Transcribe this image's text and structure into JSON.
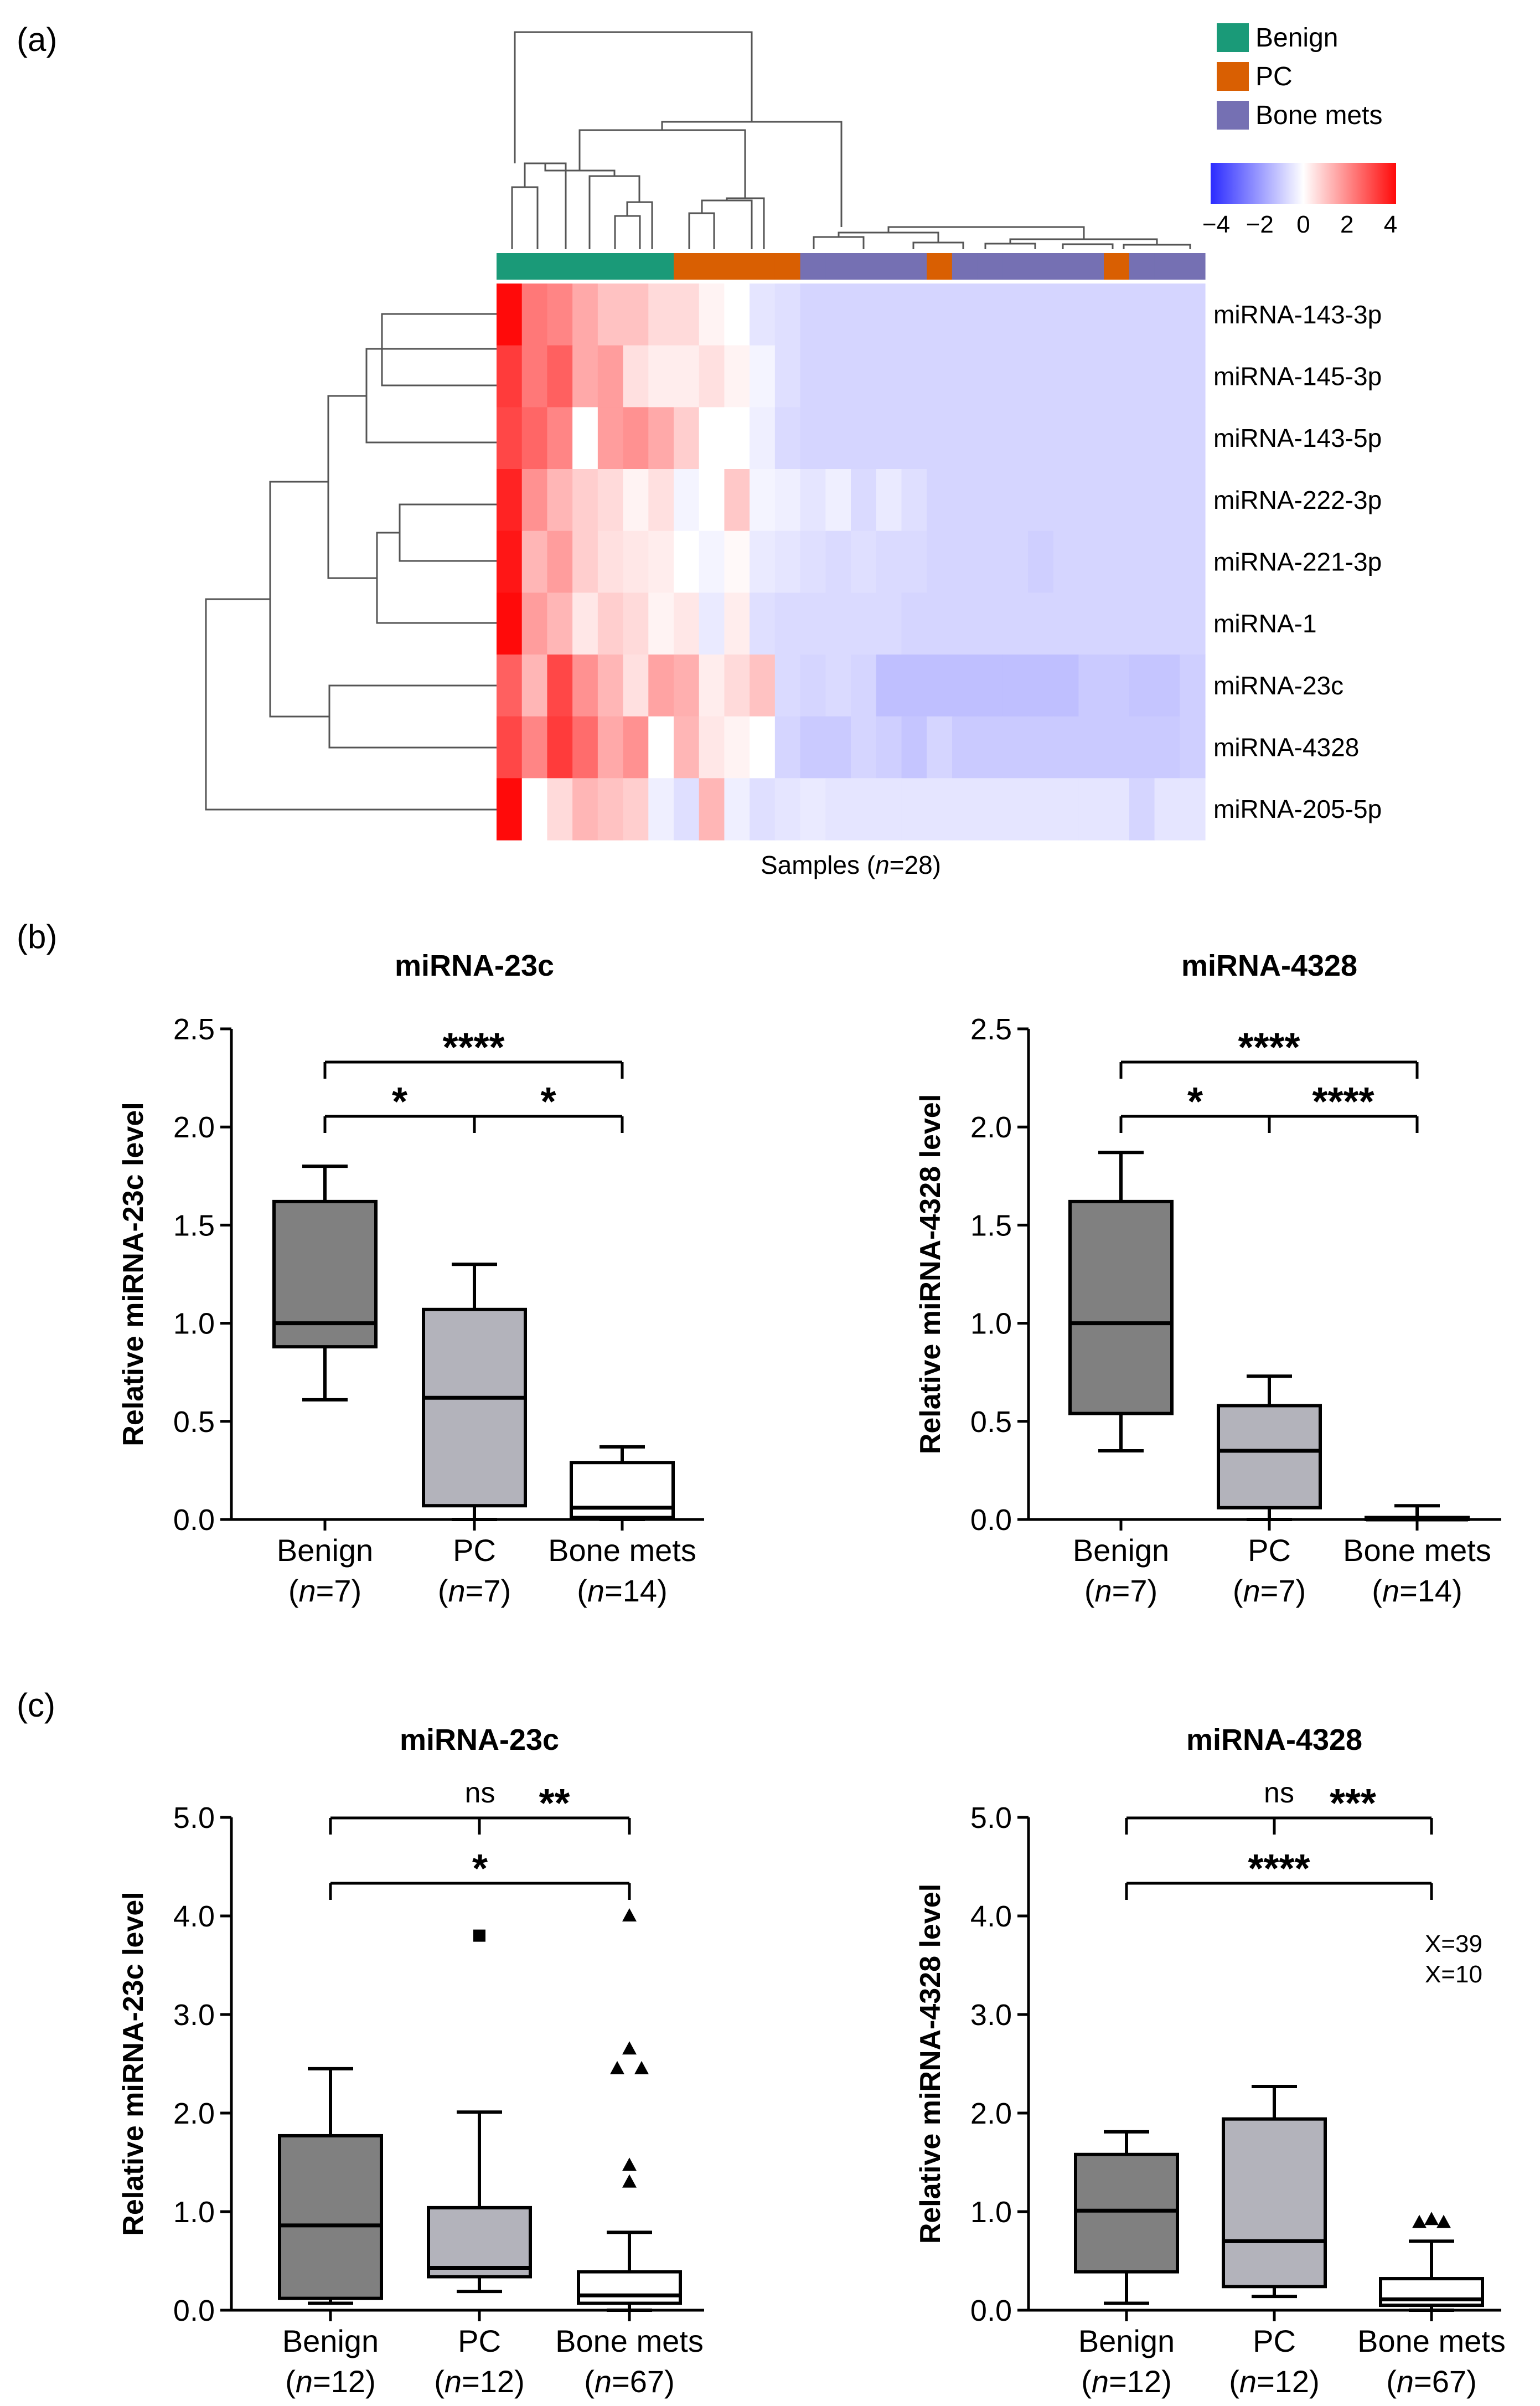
{
  "panels": {
    "a": {
      "label": "(a)",
      "sample_axis_label": "Samples (n=28)",
      "sample_axis_label_parts": {
        "prefix": "Samples (",
        "italic": "n",
        "suffix": "=28)"
      },
      "legend": [
        {
          "label": "Benign",
          "color": "#1a9a78"
        },
        {
          "label": "PC",
          "color": "#d95f02"
        },
        {
          "label": "Bone mets",
          "color": "#7570b3"
        }
      ],
      "colorbar": {
        "ticks": [
          "−4",
          "−2",
          "0",
          "2",
          "4"
        ],
        "min": -4,
        "max": 4,
        "low_color": "#2b2bff",
        "mid_color": "#ffffff",
        "high_color": "#ff0a0a"
      }
    },
    "b": {
      "label": "(b)"
    },
    "c": {
      "label": "(c)"
    }
  },
  "chart_data": [
    {
      "type": "heatmap",
      "panel": "a",
      "title": "",
      "xlabel": "Samples (n=28)",
      "row_labels": [
        "miRNA-143-3p",
        "miRNA-145-3p",
        "miRNA-143-5p",
        "miRNA-222-3p",
        "miRNA-221-3p",
        "miRNA-1",
        "miRNA-23c",
        "miRNA-4328",
        "miRNA-205-5p"
      ],
      "column_groups": [
        "Benign",
        "Benign",
        "Benign",
        "Benign",
        "Benign",
        "Benign",
        "Benign",
        "PC",
        "PC",
        "PC",
        "PC",
        "PC",
        "Bone mets",
        "Bone mets",
        "Bone mets",
        "Bone mets",
        "Bone mets",
        "PC",
        "Bone mets",
        "Bone mets",
        "Bone mets",
        "Bone mets",
        "Bone mets",
        "Bone mets",
        "PC",
        "Bone mets",
        "Bone mets",
        "Bone mets"
      ],
      "values": [
        [
          4.0,
          2.2,
          2.0,
          1.4,
          1.0,
          1.0,
          0.6,
          0.6,
          0.2,
          0.0,
          -0.5,
          -0.6,
          -0.8,
          -0.8,
          -0.8,
          -0.8,
          -0.8,
          -0.8,
          -0.8,
          -0.8,
          -0.8,
          -0.8,
          -0.8,
          -0.8,
          -0.8,
          -0.8,
          -0.8,
          -0.8
        ],
        [
          3.2,
          2.2,
          2.6,
          1.4,
          1.6,
          0.5,
          0.3,
          0.3,
          0.5,
          0.2,
          -0.2,
          -0.6,
          -0.8,
          -0.8,
          -0.8,
          -0.8,
          -0.8,
          -0.8,
          -0.8,
          -0.8,
          -0.8,
          -0.8,
          -0.8,
          -0.8,
          -0.8,
          -0.8,
          -0.8,
          -0.8
        ],
        [
          3.0,
          2.5,
          2.0,
          0.0,
          1.6,
          1.8,
          1.4,
          0.8,
          0.0,
          0.0,
          -0.3,
          -0.7,
          -0.8,
          -0.8,
          -0.8,
          -0.8,
          -0.8,
          -0.8,
          -0.8,
          -0.8,
          -0.8,
          -0.8,
          -0.8,
          -0.8,
          -0.8,
          -0.8,
          -0.8,
          -0.8
        ],
        [
          3.6,
          1.8,
          1.2,
          0.8,
          0.6,
          0.2,
          0.5,
          -0.2,
          0.0,
          0.9,
          -0.2,
          -0.3,
          -0.5,
          -0.3,
          -0.7,
          -0.4,
          -0.6,
          -0.8,
          -0.8,
          -0.8,
          -0.8,
          -0.8,
          -0.8,
          -0.8,
          -0.8,
          -0.8,
          -0.8,
          -0.8
        ],
        [
          3.8,
          1.2,
          1.6,
          0.8,
          0.5,
          0.4,
          0.3,
          0.0,
          -0.2,
          0.1,
          -0.4,
          -0.5,
          -0.6,
          -0.7,
          -0.6,
          -0.7,
          -0.7,
          -0.8,
          -0.8,
          -0.8,
          -0.8,
          -0.9,
          -0.8,
          -0.8,
          -0.8,
          -0.8,
          -0.8,
          -0.8
        ],
        [
          4.2,
          1.6,
          1.2,
          0.4,
          0.8,
          0.6,
          0.2,
          0.4,
          -0.4,
          0.3,
          -0.6,
          -0.7,
          -0.7,
          -0.7,
          -0.7,
          -0.7,
          -0.8,
          -0.8,
          -0.8,
          -0.8,
          -0.8,
          -0.8,
          -0.8,
          -0.8,
          -0.8,
          -0.8,
          -0.8,
          -0.8
        ],
        [
          2.6,
          1.2,
          3.0,
          1.8,
          1.2,
          0.5,
          1.5,
          1.3,
          0.3,
          0.6,
          1.0,
          -0.7,
          -0.8,
          -0.7,
          -0.8,
          -1.2,
          -1.2,
          -1.2,
          -1.2,
          -1.2,
          -1.2,
          -1.2,
          -1.2,
          -1.0,
          -1.0,
          -1.1,
          -1.1,
          -0.9
        ],
        [
          3.0,
          2.0,
          3.2,
          2.4,
          1.4,
          1.8,
          0.0,
          1.2,
          0.4,
          0.2,
          0.0,
          -0.8,
          -1.0,
          -1.0,
          -0.8,
          -0.9,
          -1.1,
          -0.8,
          -1.0,
          -1.0,
          -1.0,
          -1.0,
          -1.0,
          -1.0,
          -1.0,
          -1.0,
          -1.0,
          -0.9
        ],
        [
          4.4,
          0.0,
          0.6,
          1.2,
          1.0,
          0.8,
          -0.3,
          -0.6,
          1.2,
          -0.3,
          -0.6,
          -0.5,
          -0.4,
          -0.5,
          -0.5,
          -0.5,
          -0.5,
          -0.5,
          -0.5,
          -0.5,
          -0.5,
          -0.5,
          -0.5,
          -0.5,
          -0.5,
          -0.8,
          -0.5,
          -0.5
        ]
      ],
      "color_range": [
        -4,
        4
      ]
    },
    {
      "type": "box",
      "panel": "b",
      "title": "miRNA-23c",
      "ylabel": "Relative miRNA-23c level",
      "ylim": [
        0,
        2.5
      ],
      "yticks": [
        "0.0",
        "0.5",
        "1.0",
        "1.5",
        "2.0",
        "2.5"
      ],
      "ytick_values": [
        0,
        0.5,
        1.0,
        1.5,
        2.0,
        2.5
      ],
      "groups": [
        {
          "name": "Benign",
          "n_label": "n",
          "n_value": "=7",
          "fill": "#808080",
          "whisker_low": 0.61,
          "q1": 0.88,
          "median": 1.0,
          "q3": 1.62,
          "whisker_high": 1.8,
          "outliers": []
        },
        {
          "name": "PC",
          "n_label": "n",
          "n_value": "=7",
          "fill": "#b3b3bb",
          "whisker_low": 0.0,
          "q1": 0.07,
          "median": 0.62,
          "q3": 1.07,
          "whisker_high": 1.3,
          "outliers": []
        },
        {
          "name": "Bone mets",
          "n_label": "n",
          "n_value": "=14",
          "fill": "#ffffff",
          "whisker_low": 0.0,
          "q1": 0.01,
          "median": 0.06,
          "q3": 0.29,
          "whisker_high": 0.37,
          "outliers": []
        }
      ],
      "significance": [
        {
          "from": 0,
          "to": 2,
          "level": 0.0,
          "label": "****"
        },
        {
          "from": 0,
          "to": 1,
          "level": 1.0,
          "label": "*"
        },
        {
          "from": 1,
          "to": 2,
          "level": 1.0,
          "label": "*"
        }
      ]
    },
    {
      "type": "box",
      "panel": "b",
      "title": "miRNA-4328",
      "ylabel": "Relative miRNA-4328 level",
      "ylim": [
        0,
        2.5
      ],
      "yticks": [
        "0.0",
        "0.5",
        "1.0",
        "1.5",
        "2.0",
        "2.5"
      ],
      "ytick_values": [
        0,
        0.5,
        1.0,
        1.5,
        2.0,
        2.5
      ],
      "groups": [
        {
          "name": "Benign",
          "n_label": "n",
          "n_value": "=7",
          "fill": "#808080",
          "whisker_low": 0.35,
          "q1": 0.54,
          "median": 1.0,
          "q3": 1.62,
          "whisker_high": 1.87,
          "outliers": []
        },
        {
          "name": "PC",
          "n_label": "n",
          "n_value": "=7",
          "fill": "#b3b3bb",
          "whisker_low": 0.0,
          "q1": 0.06,
          "median": 0.35,
          "q3": 0.58,
          "whisker_high": 0.73,
          "outliers": []
        },
        {
          "name": "Bone mets",
          "n_label": "n",
          "n_value": "=14",
          "fill": "#ffffff",
          "whisker_low": 0.0,
          "q1": 0.0,
          "median": 0.0,
          "q3": 0.01,
          "whisker_high": 0.07,
          "outliers": []
        }
      ],
      "significance": [
        {
          "from": 0,
          "to": 2,
          "level": 0.0,
          "label": "****"
        },
        {
          "from": 0,
          "to": 1,
          "level": 1.0,
          "label": "*"
        },
        {
          "from": 1,
          "to": 2,
          "level": 1.0,
          "label": "****"
        }
      ]
    },
    {
      "type": "box",
      "panel": "c",
      "title": "miRNA-23c",
      "ylabel": "Relative miRNA-23c level",
      "ylim": [
        0,
        5.0
      ],
      "yticks": [
        "0.0",
        "1.0",
        "2.0",
        "3.0",
        "4.0",
        "5.0"
      ],
      "ytick_values": [
        0,
        1,
        2,
        3,
        4,
        5
      ],
      "groups": [
        {
          "name": "Benign",
          "n_label": "n",
          "n_value": "=12",
          "fill": "#808080",
          "whisker_low": 0.07,
          "q1": 0.12,
          "median": 0.86,
          "q3": 1.77,
          "whisker_high": 2.45,
          "outliers": []
        },
        {
          "name": "PC",
          "n_label": "n",
          "n_value": "=12",
          "fill": "#b3b3bb",
          "whisker_low": 0.19,
          "q1": 0.34,
          "median": 0.43,
          "q3": 1.04,
          "whisker_high": 2.01,
          "outliers": [
            {
              "v": 3.8,
              "dx": 0,
              "shape": "square"
            }
          ]
        },
        {
          "name": "Bone mets",
          "n_label": "n",
          "n_value": "=67",
          "fill": "#ffffff",
          "whisker_low": 0.0,
          "q1": 0.07,
          "median": 0.15,
          "q3": 0.39,
          "whisker_high": 0.79,
          "outliers": [
            {
              "v": 4.0,
              "dx": 0,
              "shape": "triangle"
            },
            {
              "v": 2.65,
              "dx": 0,
              "shape": "triangle"
            },
            {
              "v": 2.45,
              "dx": -0.4,
              "shape": "triangle"
            },
            {
              "v": 2.45,
              "dx": 0.4,
              "shape": "triangle"
            },
            {
              "v": 1.47,
              "dx": 0,
              "shape": "triangle"
            },
            {
              "v": 1.3,
              "dx": 0,
              "shape": "triangle"
            }
          ]
        }
      ],
      "significance": [
        {
          "from": 0,
          "to": 2,
          "level": 0.0,
          "label": "ns"
        },
        {
          "from": 1,
          "to": 2,
          "level": 0.0,
          "label": "**"
        },
        {
          "from": 0,
          "to": 2,
          "level": 1.0,
          "label": "*"
        }
      ]
    },
    {
      "type": "box",
      "panel": "c",
      "title": "miRNA-4328",
      "ylabel": "Relative miRNA-4328 level",
      "ylim": [
        0,
        5.0
      ],
      "yticks": [
        "0.0",
        "1.0",
        "2.0",
        "3.0",
        "4.0",
        "5.0"
      ],
      "ytick_values": [
        0,
        1,
        2,
        3,
        4,
        5
      ],
      "groups": [
        {
          "name": "Benign",
          "n_label": "n",
          "n_value": "=12",
          "fill": "#808080",
          "whisker_low": 0.07,
          "q1": 0.39,
          "median": 1.01,
          "q3": 1.58,
          "whisker_high": 1.81,
          "outliers": []
        },
        {
          "name": "PC",
          "n_label": "n",
          "n_value": "=12",
          "fill": "#b3b3bb",
          "whisker_low": 0.14,
          "q1": 0.24,
          "median": 0.7,
          "q3": 1.94,
          "whisker_high": 2.27,
          "outliers": []
        },
        {
          "name": "Bone mets",
          "n_label": "n",
          "n_value": "=67",
          "fill": "#ffffff",
          "whisker_low": 0.0,
          "q1": 0.05,
          "median": 0.11,
          "q3": 0.32,
          "whisker_high": 0.7,
          "outliers": [
            {
              "v": 0.89,
              "dx": -0.4,
              "shape": "triangle"
            },
            {
              "v": 0.92,
              "dx": 0,
              "shape": "triangle"
            },
            {
              "v": 0.89,
              "dx": 0.4,
              "shape": "triangle"
            }
          ]
        }
      ],
      "offscale_notes": [
        "X=39",
        "X=10"
      ],
      "significance": [
        {
          "from": 0,
          "to": 2,
          "level": 0.0,
          "label": "ns"
        },
        {
          "from": 1,
          "to": 2,
          "level": 0.0,
          "label": "***"
        },
        {
          "from": 0,
          "to": 2,
          "level": 1.0,
          "label": "****"
        }
      ]
    }
  ]
}
